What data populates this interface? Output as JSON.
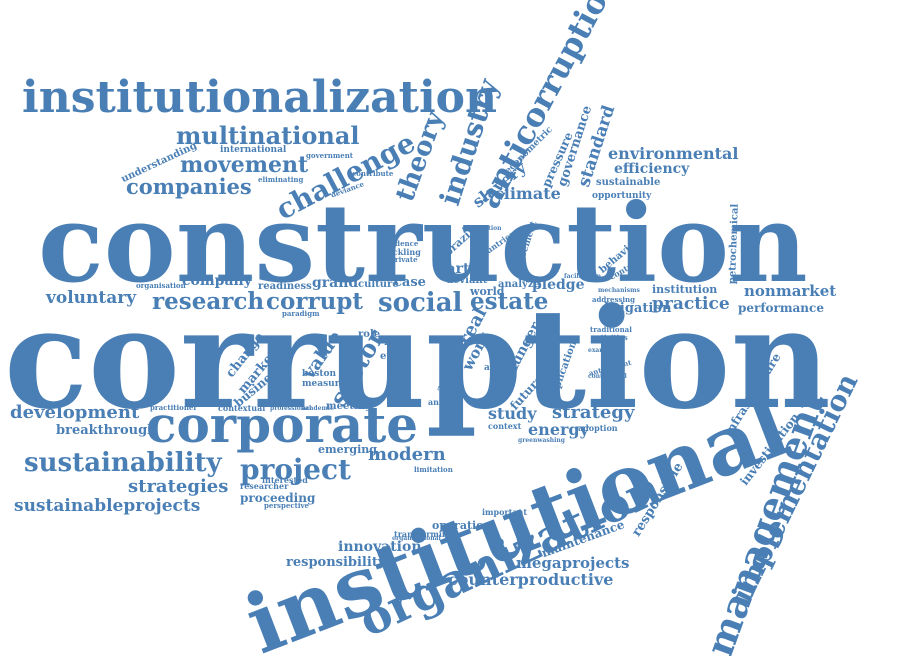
{
  "colors": {
    "text": "#4a7fb5",
    "background": "#ffffff"
  },
  "words": [
    "construction",
    "corruption",
    "institutional",
    "institutionalization",
    "corporate",
    "organization",
    "management",
    "anticorruption",
    "implementation",
    "industry",
    "multinational",
    "challenge",
    "movement",
    "companies",
    "theory",
    "sustainability",
    "project",
    "development",
    "strategies",
    "sustainableprojects",
    "research",
    "corrupt",
    "social",
    "estate",
    "voluntary",
    "company",
    "environmental",
    "efficiency",
    "climate",
    "standard",
    "governance",
    "slavery",
    "practice",
    "nonmarket",
    "litigation",
    "performance",
    "strategy",
    "study",
    "energy",
    "modern",
    "innovation",
    "responsibility",
    "counterproductive",
    "megaprojects",
    "maintenance",
    "responsible",
    "investigation",
    "infrastructure",
    "petrochemical",
    "breakthrough",
    "proceeding",
    "operation",
    "sector",
    "value",
    "market",
    "business",
    "change",
    "meeting",
    "emerging",
    "grand",
    "culture",
    "case",
    "pledge",
    "cartel",
    "brazil",
    "real",
    "work",
    "fight",
    "ethic",
    "boston",
    "measure",
    "action",
    "future",
    "hunger",
    "implication",
    "agency",
    "world",
    "analyze",
    "deviant",
    "institution",
    "sustainable",
    "opportunity",
    "pressure",
    "econometric",
    "understanding",
    "international",
    "government",
    "eliminating",
    "readiness",
    "paradigm",
    "role",
    "contextual",
    "interested",
    "researcher",
    "perspective",
    "transforming",
    "organizational",
    "important",
    "context",
    "adoption",
    "greenwashing",
    "annual",
    "practitioner",
    "professional",
    "academic",
    "contribute",
    "deviance",
    "evidence",
    "tackling",
    "private",
    "behavior",
    "contract",
    "addressing",
    "traditional",
    "activities",
    "examining",
    "antecedent",
    "contractual",
    "agreement",
    "corporation",
    "countries",
    "organisation",
    "limitation",
    "mechanisms",
    "facilitation"
  ]
}
